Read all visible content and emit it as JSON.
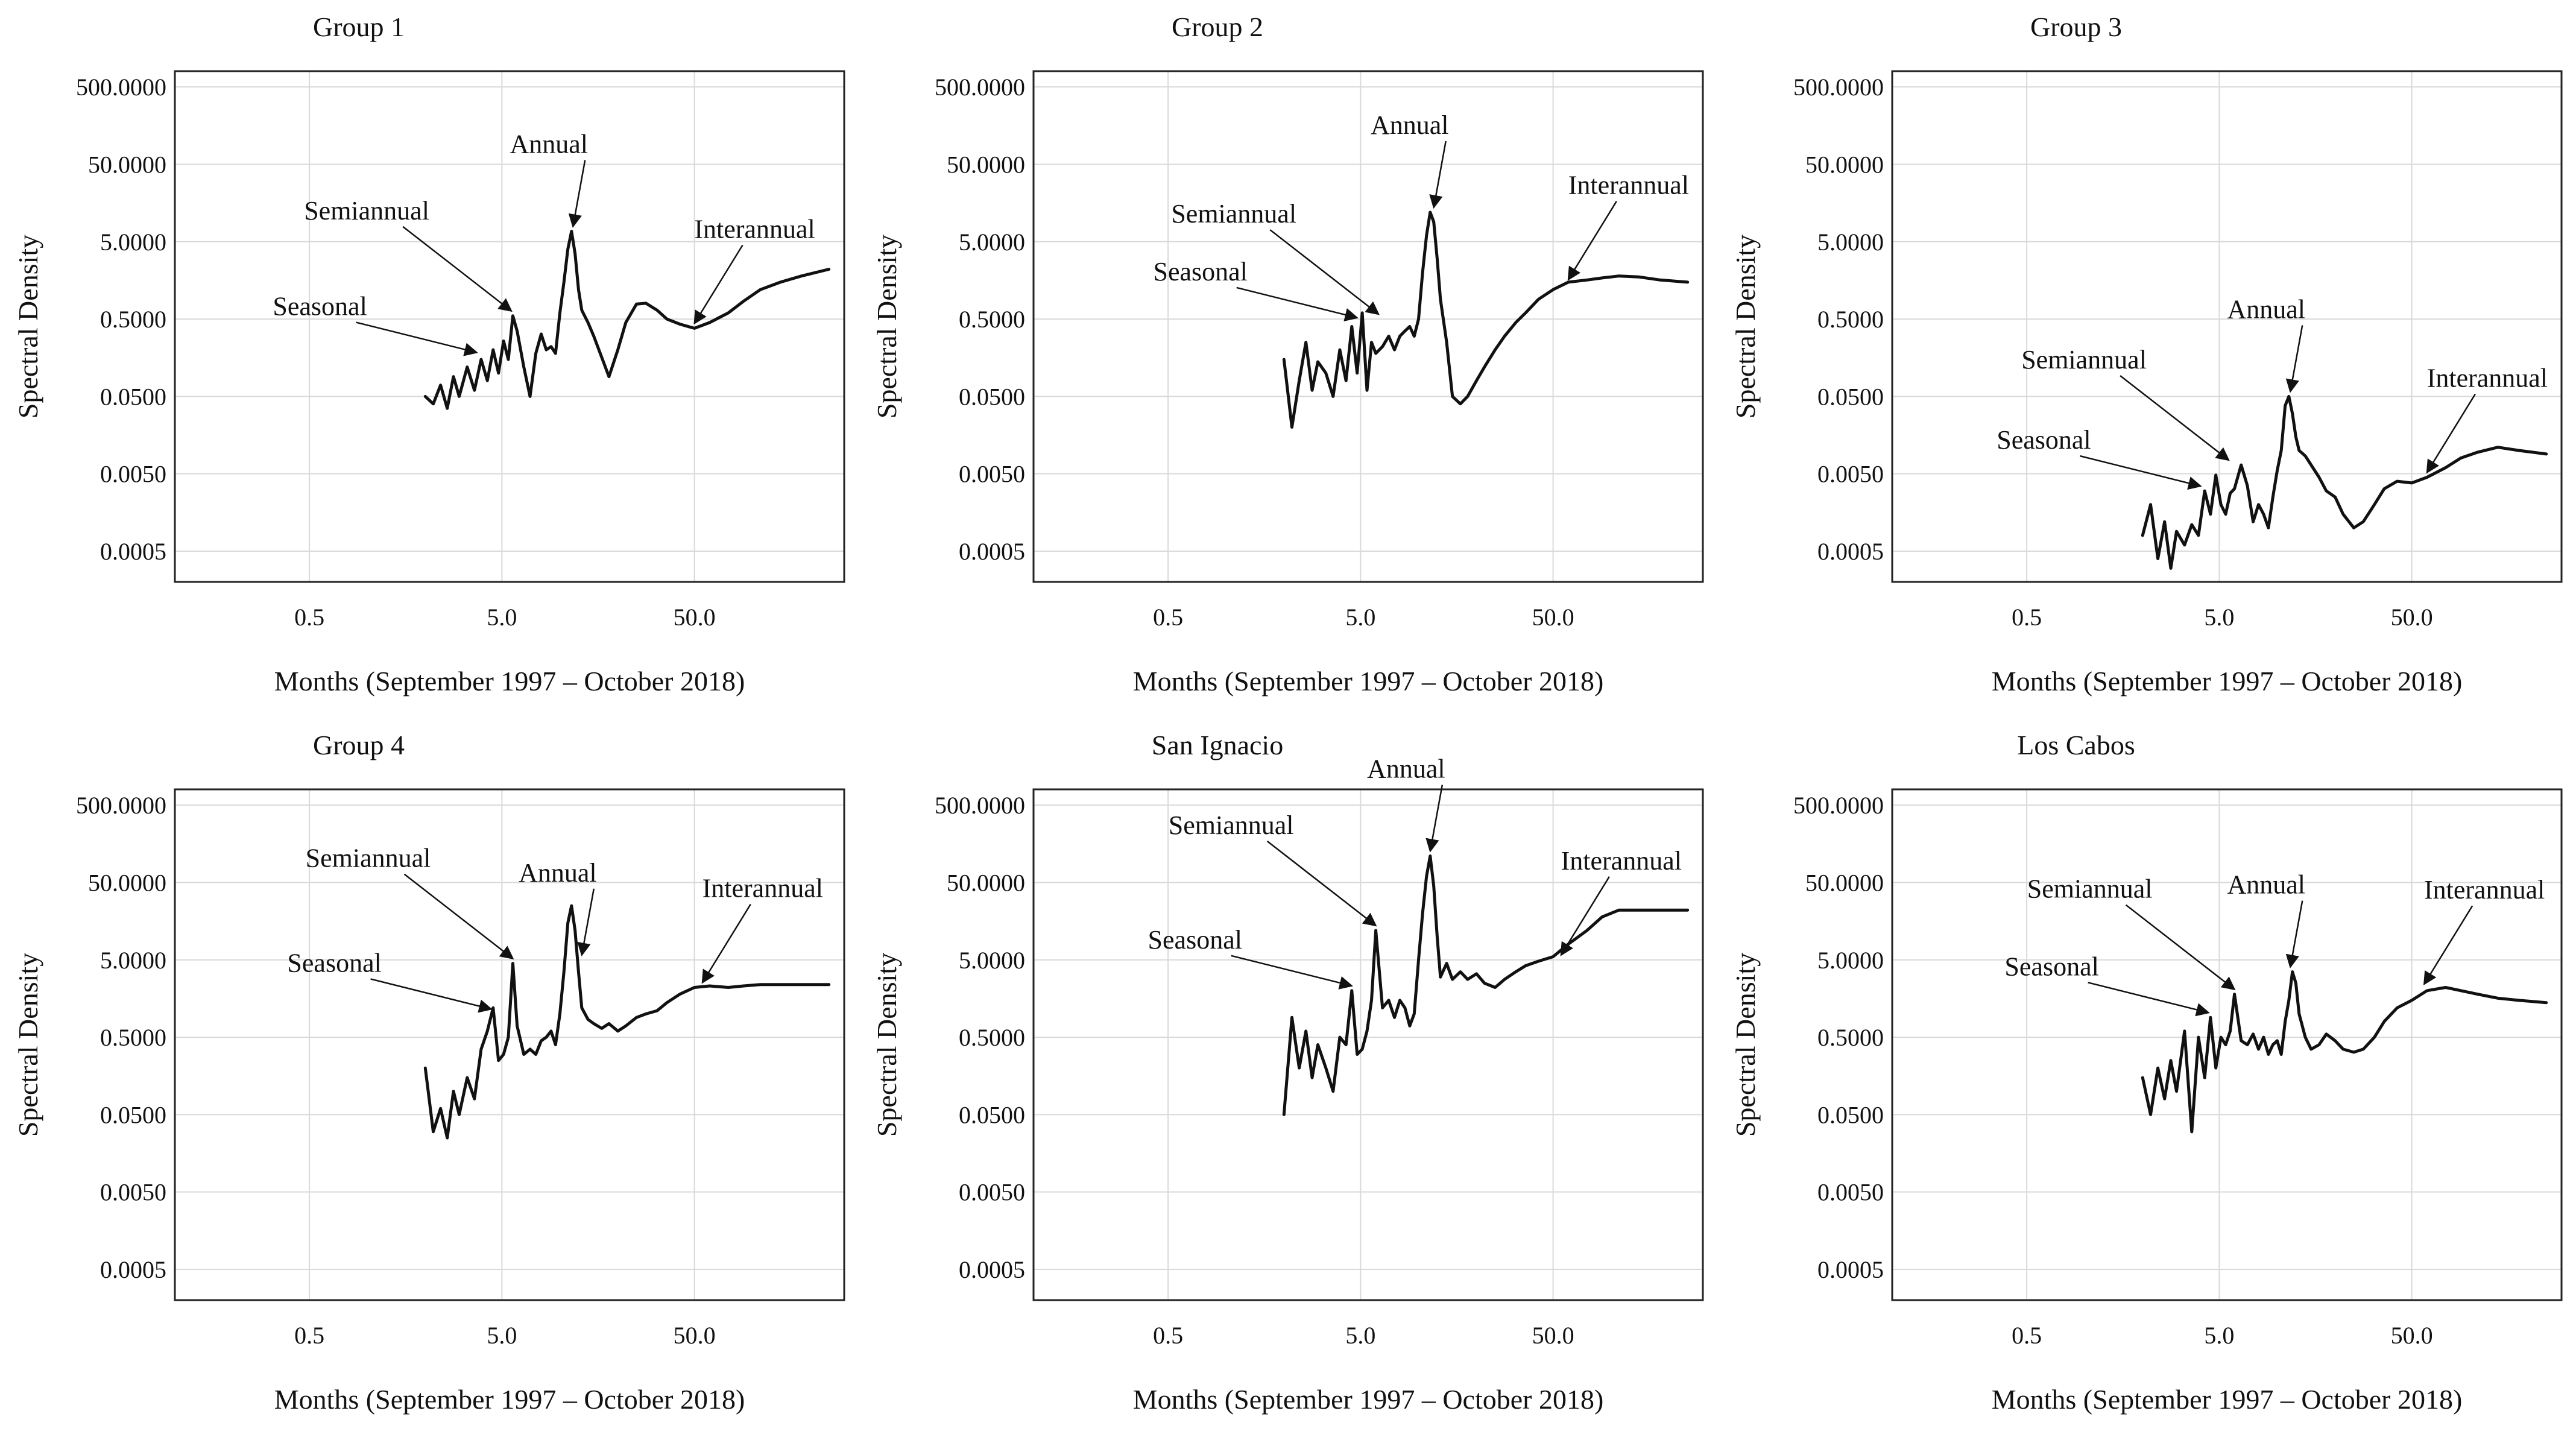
{
  "figure": {
    "background": "#ffffff",
    "line_color": "#111111",
    "grid_color": "#d9d9d9"
  },
  "chart_data": [
    {
      "type": "line",
      "title": "Group 1",
      "xlabel": "Months (September 1997 – October 2018)",
      "ylabel": "Spectral Density",
      "xscale": "log",
      "yscale": "log",
      "xlim": [
        0.1,
        300
      ],
      "ylim": [
        0.0002,
        800
      ],
      "x_ticks": [
        0.5,
        5.0,
        50.0
      ],
      "x_tick_labels": [
        "0.5",
        "5.0",
        "50.0"
      ],
      "y_ticks": [
        0.0005,
        0.005,
        0.05,
        0.5,
        5,
        50,
        500
      ],
      "y_tick_labels": [
        "0.0005",
        "0.0050",
        "0.0500",
        "0.5000",
        "5.0000",
        "50.0000",
        "500.0000"
      ],
      "grid": true,
      "series": [
        {
          "name": "Spectral Density",
          "x": [
            2.0,
            2.2,
            2.4,
            2.6,
            2.8,
            3.0,
            3.3,
            3.6,
            3.9,
            4.2,
            4.5,
            4.8,
            5.1,
            5.4,
            5.7,
            6.0,
            6.5,
            7.0,
            7.5,
            8.0,
            8.5,
            9.0,
            9.5,
            10.0,
            10.5,
            11.0,
            11.5,
            12.0,
            12.5,
            13.0,
            14.0,
            15.0,
            16.5,
            18.0,
            20.0,
            22.0,
            25.0,
            28.0,
            32.0,
            36.0,
            42.0,
            50.0,
            60.0,
            75.0,
            90.0,
            110.0,
            140.0,
            180.0,
            250.0
          ],
          "values": [
            0.05,
            0.04,
            0.07,
            0.035,
            0.09,
            0.05,
            0.12,
            0.06,
            0.15,
            0.08,
            0.2,
            0.1,
            0.26,
            0.15,
            0.55,
            0.35,
            0.12,
            0.05,
            0.18,
            0.32,
            0.2,
            0.22,
            0.18,
            0.6,
            1.5,
            4.0,
            6.8,
            3.5,
            1.2,
            0.65,
            0.45,
            0.3,
            0.16,
            0.09,
            0.2,
            0.45,
            0.78,
            0.8,
            0.65,
            0.5,
            0.43,
            0.38,
            0.45,
            0.6,
            0.85,
            1.2,
            1.5,
            1.8,
            2.2
          ]
        }
      ],
      "annotations": [
        {
          "text": "Annual",
          "x": 11.7,
          "y": 6.8
        },
        {
          "text": "Semiannual",
          "x": 5.6,
          "y": 0.55
        },
        {
          "text": "Seasonal",
          "x": 3.7,
          "y": 0.16
        },
        {
          "text": "Interannual",
          "x": 50.0,
          "y": 0.38
        }
      ]
    },
    {
      "type": "line",
      "title": "Group 2",
      "xlabel": "Months (September 1997 – October 2018)",
      "ylabel": "Spectral Density",
      "xscale": "log",
      "yscale": "log",
      "xlim": [
        0.1,
        300
      ],
      "ylim": [
        0.0002,
        800
      ],
      "x_ticks": [
        0.5,
        5.0,
        50.0
      ],
      "x_tick_labels": [
        "0.5",
        "5.0",
        "50.0"
      ],
      "y_ticks": [
        0.0005,
        0.005,
        0.05,
        0.5,
        5,
        50,
        500
      ],
      "y_tick_labels": [
        "0.0005",
        "0.0050",
        "0.0500",
        "0.5000",
        "5.0000",
        "50.0000",
        "500.0000"
      ],
      "grid": true,
      "series": [
        {
          "name": "Spectral Density",
          "x": [
            2.0,
            2.2,
            2.4,
            2.6,
            2.8,
            3.0,
            3.3,
            3.6,
            3.9,
            4.2,
            4.5,
            4.8,
            5.1,
            5.4,
            5.7,
            6.0,
            6.5,
            7.0,
            7.5,
            8.0,
            8.5,
            9.0,
            9.5,
            10.0,
            10.5,
            11.0,
            11.5,
            12.0,
            12.5,
            13.0,
            14.0,
            15.0,
            16.5,
            18.0,
            20.0,
            22.0,
            25.0,
            28.0,
            32.0,
            36.0,
            42.0,
            50.0,
            60.0,
            75.0,
            90.0,
            110.0,
            140.0,
            180.0,
            250.0
          ],
          "values": [
            0.15,
            0.02,
            0.08,
            0.25,
            0.06,
            0.14,
            0.1,
            0.05,
            0.2,
            0.08,
            0.4,
            0.1,
            0.6,
            0.06,
            0.25,
            0.18,
            0.22,
            0.3,
            0.2,
            0.3,
            0.35,
            0.4,
            0.3,
            0.5,
            2.0,
            6.0,
            12.0,
            9.0,
            3.0,
            0.9,
            0.25,
            0.05,
            0.04,
            0.05,
            0.08,
            0.12,
            0.2,
            0.3,
            0.45,
            0.6,
            0.9,
            1.2,
            1.5,
            1.6,
            1.7,
            1.8,
            1.75,
            1.6,
            1.5
          ]
        }
      ],
      "annotations": [
        {
          "text": "Annual",
          "x": 12.0,
          "y": 12.0
        },
        {
          "text": "Semiannual",
          "x": 6.2,
          "y": 0.5
        },
        {
          "text": "Seasonal",
          "x": 4.8,
          "y": 0.45
        },
        {
          "text": "Interannual",
          "x": 60.0,
          "y": 1.4
        }
      ]
    },
    {
      "type": "line",
      "title": "Group 3",
      "xlabel": "Months (September 1997 – October 2018)",
      "ylabel": "Spectral Density",
      "xscale": "log",
      "yscale": "log",
      "xlim": [
        0.1,
        300
      ],
      "ylim": [
        0.0002,
        800
      ],
      "x_ticks": [
        0.5,
        5.0,
        50.0
      ],
      "x_tick_labels": [
        "0.5",
        "5.0",
        "50.0"
      ],
      "y_ticks": [
        0.0005,
        0.005,
        0.05,
        0.5,
        5,
        50,
        500
      ],
      "y_tick_labels": [
        "0.0005",
        "0.0050",
        "0.0500",
        "0.5000",
        "5.0000",
        "50.0000",
        "500.0000"
      ],
      "grid": true,
      "series": [
        {
          "name": "Spectral Density",
          "x": [
            2.0,
            2.2,
            2.4,
            2.6,
            2.8,
            3.0,
            3.3,
            3.6,
            3.9,
            4.2,
            4.5,
            4.8,
            5.1,
            5.4,
            5.7,
            6.0,
            6.5,
            7.0,
            7.5,
            8.0,
            8.5,
            9.0,
            9.5,
            10.0,
            10.5,
            11.0,
            11.5,
            12.0,
            12.5,
            13.0,
            14.0,
            15.0,
            16.5,
            18.0,
            20.0,
            22.0,
            25.0,
            28.0,
            32.0,
            36.0,
            42.0,
            50.0,
            60.0,
            75.0,
            90.0,
            110.0,
            140.0,
            180.0,
            250.0
          ],
          "values": [
            0.0008,
            0.002,
            0.0004,
            0.0012,
            0.0003,
            0.0009,
            0.0006,
            0.0011,
            0.0008,
            0.003,
            0.0015,
            0.0048,
            0.002,
            0.0015,
            0.0028,
            0.0032,
            0.0065,
            0.0035,
            0.0012,
            0.002,
            0.0015,
            0.001,
            0.0025,
            0.0055,
            0.01,
            0.038,
            0.05,
            0.03,
            0.015,
            0.01,
            0.0085,
            0.0065,
            0.0045,
            0.003,
            0.0025,
            0.0015,
            0.001,
            0.0012,
            0.002,
            0.0032,
            0.004,
            0.0038,
            0.0045,
            0.006,
            0.008,
            0.0095,
            0.011,
            0.01,
            0.009
          ]
        }
      ],
      "annotations": [
        {
          "text": "Annual",
          "x": 11.7,
          "y": 0.05
        },
        {
          "text": "Semiannual",
          "x": 5.6,
          "y": 0.0065
        },
        {
          "text": "Seasonal",
          "x": 4.0,
          "y": 0.003
        },
        {
          "text": "Interannual",
          "x": 60.0,
          "y": 0.0045
        }
      ]
    },
    {
      "type": "line",
      "title": "Group 4",
      "xlabel": "Months (September 1997 – October 2018)",
      "ylabel": "Spectral Density",
      "xscale": "log",
      "yscale": "log",
      "xlim": [
        0.1,
        300
      ],
      "ylim": [
        0.0002,
        800
      ],
      "x_ticks": [
        0.5,
        5.0,
        50.0
      ],
      "x_tick_labels": [
        "0.5",
        "5.0",
        "50.0"
      ],
      "y_ticks": [
        0.0005,
        0.005,
        0.05,
        0.5,
        5,
        50,
        500
      ],
      "y_tick_labels": [
        "0.0005",
        "0.0050",
        "0.0500",
        "0.5000",
        "5.0000",
        "50.0000",
        "500.0000"
      ],
      "grid": true,
      "series": [
        {
          "name": "Spectral Density",
          "x": [
            2.0,
            2.2,
            2.4,
            2.6,
            2.8,
            3.0,
            3.3,
            3.6,
            3.9,
            4.2,
            4.5,
            4.8,
            5.1,
            5.4,
            5.7,
            6.0,
            6.5,
            7.0,
            7.5,
            8.0,
            8.5,
            9.0,
            9.5,
            10.0,
            10.5,
            11.0,
            11.5,
            12.0,
            12.5,
            13.0,
            14.0,
            15.0,
            16.5,
            18.0,
            20.0,
            22.0,
            25.0,
            28.0,
            32.0,
            36.0,
            42.0,
            50.0,
            60.0,
            75.0,
            90.0,
            110.0,
            140.0,
            180.0,
            250.0
          ],
          "values": [
            0.2,
            0.03,
            0.06,
            0.025,
            0.1,
            0.05,
            0.15,
            0.08,
            0.35,
            0.6,
            1.2,
            0.25,
            0.3,
            0.5,
            4.5,
            0.7,
            0.3,
            0.35,
            0.3,
            0.45,
            0.5,
            0.6,
            0.4,
            1.0,
            3.5,
            15.0,
            25.0,
            12.0,
            3.5,
            1.2,
            0.85,
            0.75,
            0.65,
            0.75,
            0.6,
            0.7,
            0.9,
            1.0,
            1.1,
            1.4,
            1.8,
            2.2,
            2.3,
            2.2,
            2.3,
            2.4,
            2.4,
            2.4,
            2.4
          ]
        }
      ],
      "annotations": [
        {
          "text": "Annual",
          "x": 13.0,
          "y": 5.0
        },
        {
          "text": "Semiannual",
          "x": 5.7,
          "y": 4.5
        },
        {
          "text": "Seasonal",
          "x": 4.4,
          "y": 1.0
        },
        {
          "text": "Interannual",
          "x": 55.0,
          "y": 2.2
        }
      ]
    },
    {
      "type": "line",
      "title": "San Ignacio",
      "xlabel": "Months (September 1997 – October 2018)",
      "ylabel": "Spectral Density",
      "xscale": "log",
      "yscale": "log",
      "xlim": [
        0.1,
        300
      ],
      "ylim": [
        0.0002,
        800
      ],
      "x_ticks": [
        0.5,
        5.0,
        50.0
      ],
      "x_tick_labels": [
        "0.5",
        "5.0",
        "50.0"
      ],
      "y_ticks": [
        0.0005,
        0.005,
        0.05,
        0.5,
        5,
        50,
        500
      ],
      "y_tick_labels": [
        "0.0005",
        "0.0050",
        "0.0500",
        "0.5000",
        "5.0000",
        "50.0000",
        "500.0000"
      ],
      "grid": true,
      "series": [
        {
          "name": "Spectral Density",
          "x": [
            2.0,
            2.2,
            2.4,
            2.6,
            2.8,
            3.0,
            3.3,
            3.6,
            3.9,
            4.2,
            4.5,
            4.8,
            5.1,
            5.4,
            5.7,
            6.0,
            6.5,
            7.0,
            7.5,
            8.0,
            8.5,
            9.0,
            9.5,
            10.0,
            10.5,
            11.0,
            11.5,
            12.0,
            12.5,
            13.0,
            14.0,
            15.0,
            16.5,
            18.0,
            20.0,
            22.0,
            25.0,
            28.0,
            32.0,
            36.0,
            42.0,
            50.0,
            60.0,
            75.0,
            90.0,
            110.0,
            140.0,
            180.0,
            250.0
          ],
          "values": [
            0.05,
            0.9,
            0.2,
            0.6,
            0.15,
            0.4,
            0.2,
            0.1,
            0.5,
            0.4,
            2.0,
            0.3,
            0.35,
            0.6,
            1.5,
            12.0,
            1.2,
            1.5,
            0.9,
            1.5,
            1.2,
            0.7,
            1.0,
            5.0,
            20.0,
            60.0,
            110.0,
            45.0,
            10.0,
            3.0,
            4.5,
            2.8,
            3.5,
            2.8,
            3.3,
            2.5,
            2.2,
            2.8,
            3.5,
            4.2,
            4.8,
            5.5,
            8.0,
            12.0,
            18.0,
            22.0,
            22.0,
            22.0,
            22.0
          ]
        }
      ],
      "annotations": [
        {
          "text": "Annual",
          "x": 11.5,
          "y": 110.0
        },
        {
          "text": "Semiannual",
          "x": 6.0,
          "y": 12.0
        },
        {
          "text": "Seasonal",
          "x": 4.5,
          "y": 2.0
        },
        {
          "text": "Interannual",
          "x": 55.0,
          "y": 5.0
        }
      ]
    },
    {
      "type": "line",
      "title": "Los Cabos",
      "xlabel": "Months (September 1997 – October 2018)",
      "ylabel": "Spectral Density",
      "xscale": "log",
      "yscale": "log",
      "xlim": [
        0.1,
        300
      ],
      "ylim": [
        0.0002,
        800
      ],
      "x_ticks": [
        0.5,
        5.0,
        50.0
      ],
      "x_tick_labels": [
        "0.5",
        "5.0",
        "50.0"
      ],
      "y_ticks": [
        0.0005,
        0.005,
        0.05,
        0.5,
        5,
        50,
        500
      ],
      "y_tick_labels": [
        "0.0005",
        "0.0050",
        "0.0500",
        "0.5000",
        "5.0000",
        "50.0000",
        "500.0000"
      ],
      "grid": true,
      "series": [
        {
          "name": "Spectral Density",
          "x": [
            2.0,
            2.2,
            2.4,
            2.6,
            2.8,
            3.0,
            3.3,
            3.6,
            3.9,
            4.2,
            4.5,
            4.8,
            5.1,
            5.4,
            5.7,
            6.0,
            6.5,
            7.0,
            7.5,
            8.0,
            8.5,
            9.0,
            9.5,
            10.0,
            10.5,
            11.0,
            11.5,
            12.0,
            12.5,
            13.0,
            14.0,
            15.0,
            16.5,
            18.0,
            20.0,
            22.0,
            25.0,
            28.0,
            32.0,
            36.0,
            42.0,
            50.0,
            60.0,
            75.0,
            90.0,
            110.0,
            140.0,
            180.0,
            250.0
          ],
          "values": [
            0.15,
            0.05,
            0.2,
            0.08,
            0.25,
            0.1,
            0.6,
            0.03,
            0.5,
            0.15,
            0.9,
            0.2,
            0.5,
            0.4,
            0.6,
            1.8,
            0.45,
            0.4,
            0.55,
            0.35,
            0.5,
            0.3,
            0.4,
            0.45,
            0.3,
            0.8,
            1.5,
            3.5,
            2.5,
            1.0,
            0.5,
            0.35,
            0.4,
            0.55,
            0.45,
            0.35,
            0.32,
            0.35,
            0.5,
            0.8,
            1.2,
            1.5,
            2.0,
            2.2,
            2.0,
            1.8,
            1.6,
            1.5,
            1.4
          ]
        }
      ],
      "annotations": [
        {
          "text": "Annual",
          "x": 11.7,
          "y": 3.5
        },
        {
          "text": "Semiannual",
          "x": 6.0,
          "y": 1.8
        },
        {
          "text": "Seasonal",
          "x": 4.4,
          "y": 0.9
        },
        {
          "text": "Interannual",
          "x": 58.0,
          "y": 2.1
        }
      ]
    }
  ]
}
